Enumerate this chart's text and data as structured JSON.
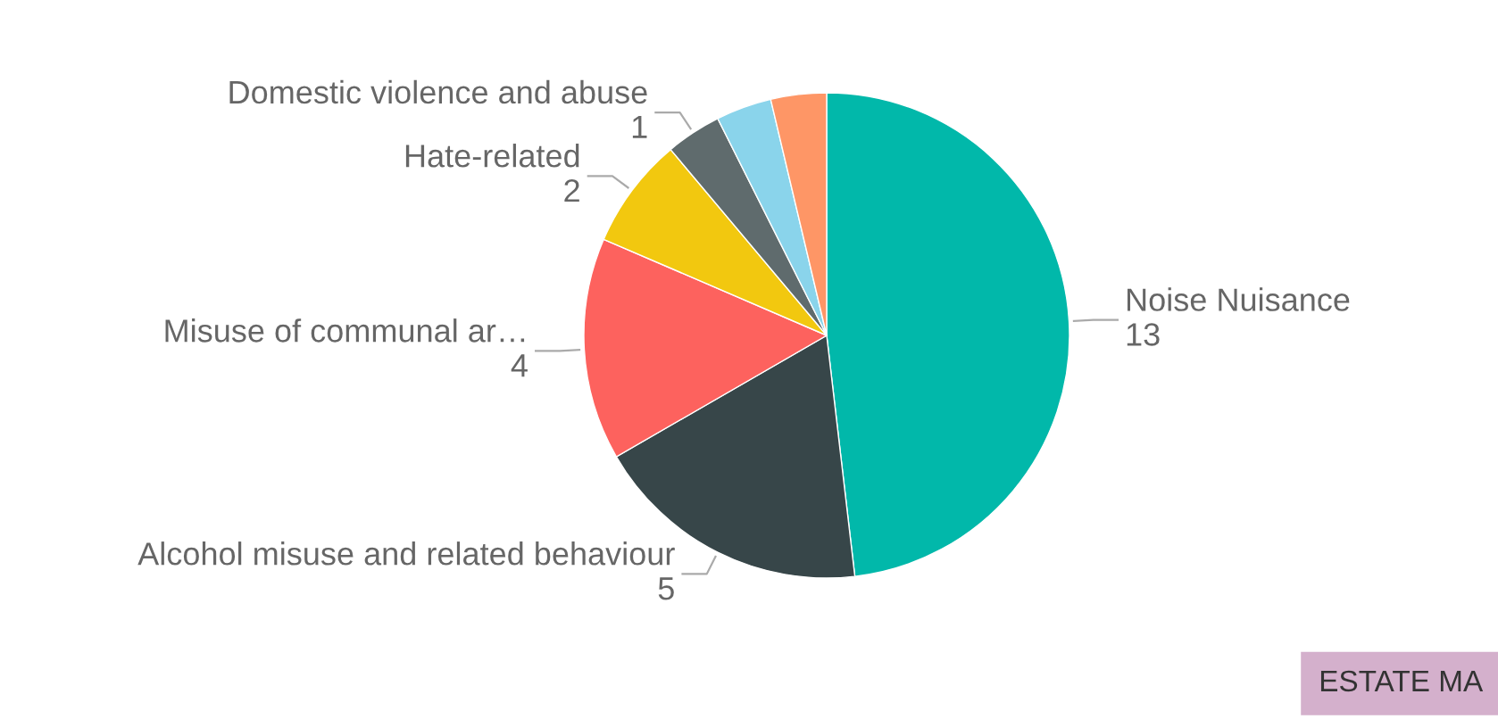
{
  "chart_data": {
    "type": "pie",
    "categories": [
      "Noise Nuisance",
      "Alcohol misuse and related behaviour",
      "Misuse of communal ar…",
      "Hate-related",
      "Domestic violence and abuse",
      null,
      null
    ],
    "values": [
      13,
      5,
      4,
      2,
      1,
      1,
      1
    ],
    "colors": [
      "#01b8aa",
      "#374649",
      "#fd625e",
      "#f2c80f",
      "#5f6b6d",
      "#8ad4eb",
      "#fe9666"
    ],
    "value_labels": [
      "13",
      "5",
      "4",
      "2",
      "1",
      null,
      null
    ],
    "legend": false,
    "annotations": [
      "ESTATE MA"
    ]
  }
}
